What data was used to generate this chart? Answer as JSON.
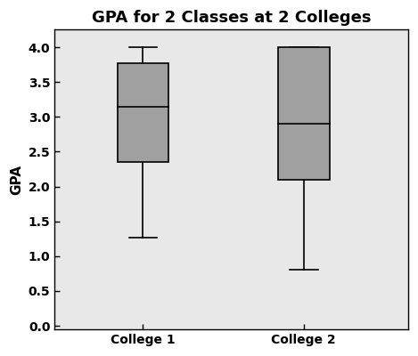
{
  "title": "GPA for 2 Classes at 2 Colleges",
  "xlabel": "",
  "ylabel": "GPA",
  "categories": [
    "College 1",
    "College 2"
  ],
  "boxes": [
    {
      "label": "College 1",
      "whisker_low": 1.27,
      "q1": 2.35,
      "median": 3.15,
      "q3": 3.77,
      "whisker_high": 4.0
    },
    {
      "label": "College 2",
      "whisker_low": 0.8,
      "q1": 2.1,
      "median": 2.9,
      "q3": 4.0,
      "whisker_high": 4.0
    }
  ],
  "ylim": [
    -0.05,
    4.25
  ],
  "yticks": [
    0.0,
    0.5,
    1.0,
    1.5,
    2.0,
    2.5,
    3.0,
    3.5,
    4.0
  ],
  "box_color": "#a0a0a0",
  "box_edge_color": "#000000",
  "median_color": "#000000",
  "whisker_color": "#000000",
  "cap_color": "#000000",
  "plot_bg_color": "#e8e8e8",
  "outer_bg_color": "#ffffff",
  "title_fontsize": 13,
  "label_fontsize": 11,
  "tick_fontsize": 10,
  "box_width": 0.32,
  "line_width": 1.2,
  "cap_ratio": 0.55,
  "positions": [
    1,
    2
  ],
  "xlim": [
    0.45,
    2.65
  ]
}
